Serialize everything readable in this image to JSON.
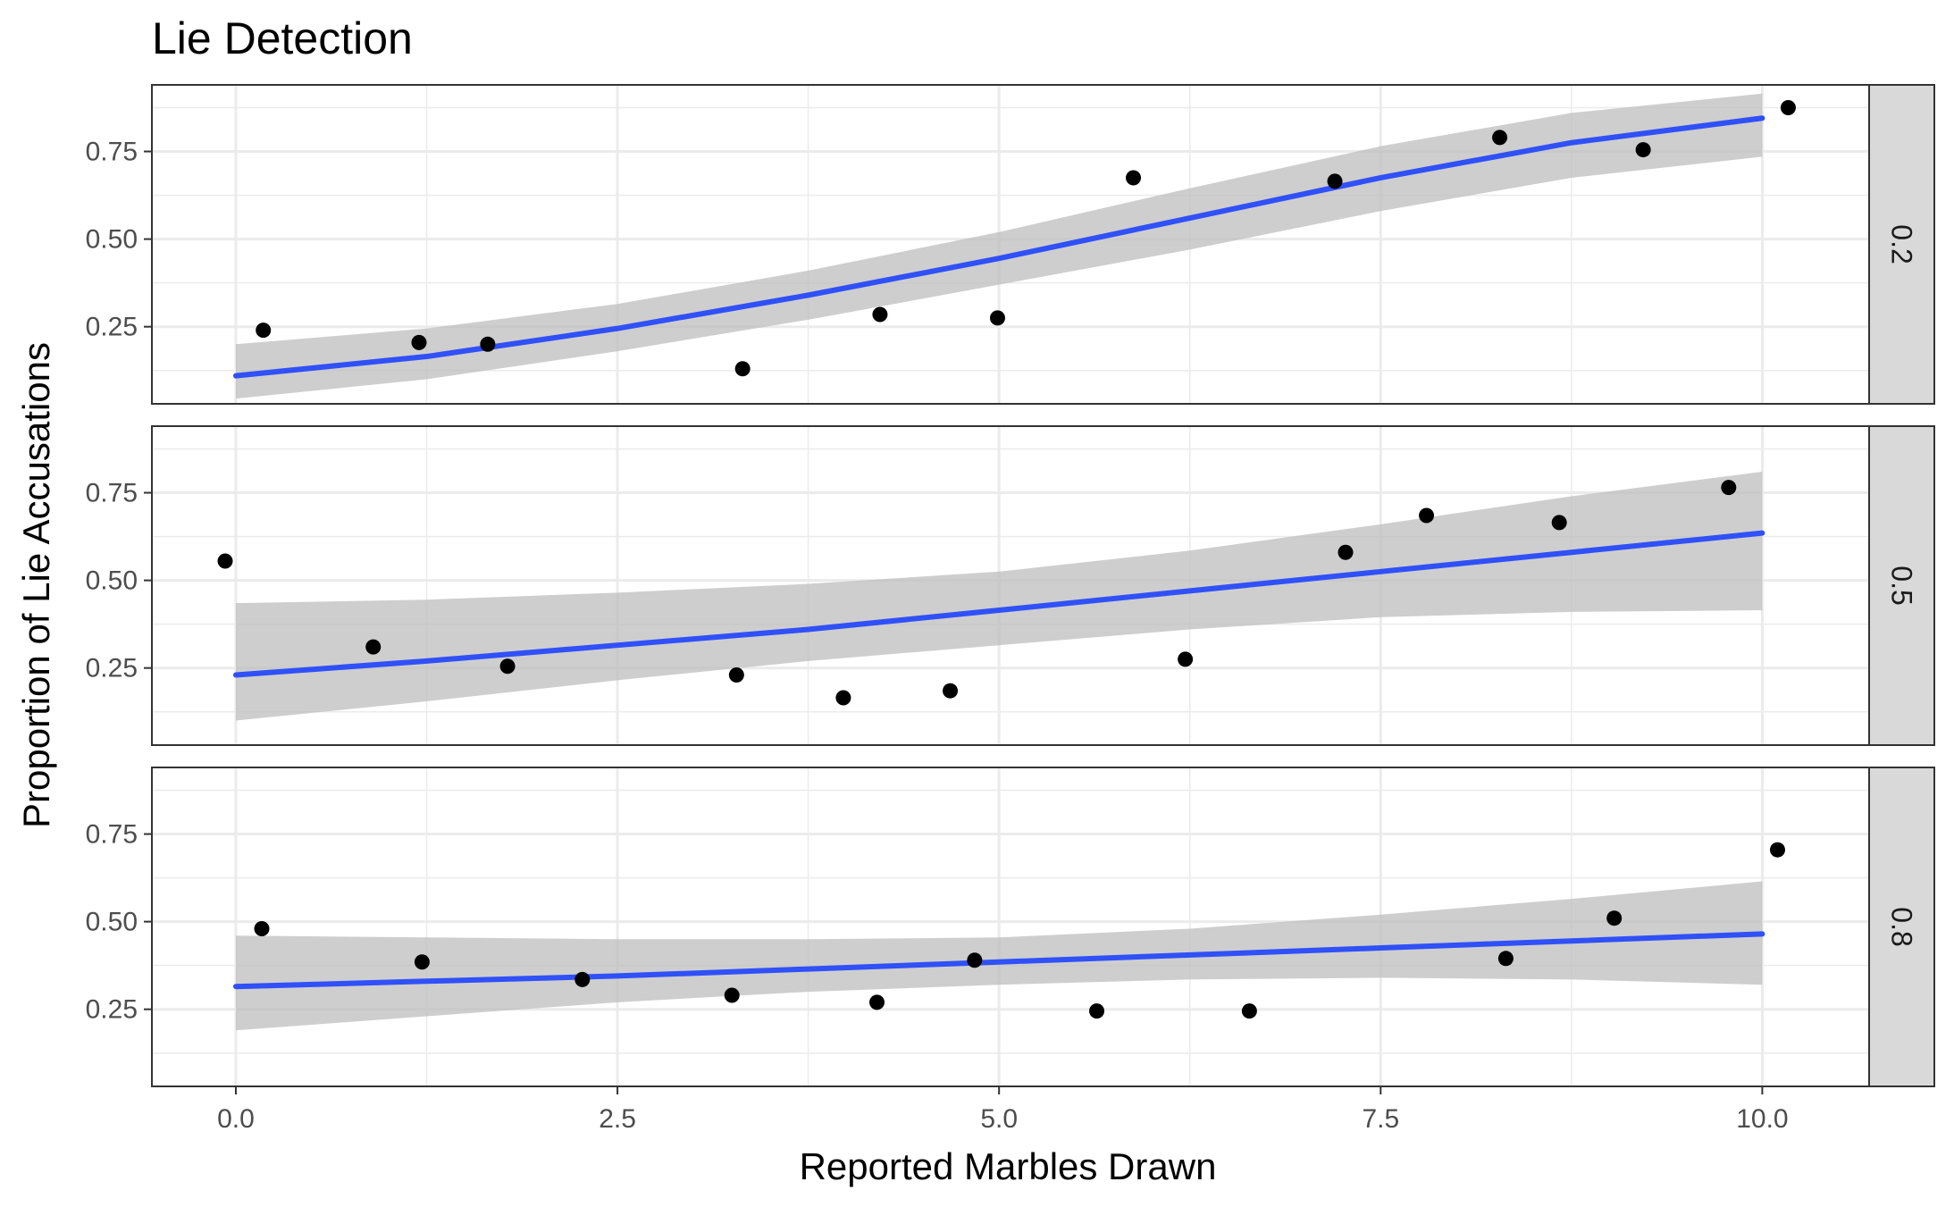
{
  "chart_data": {
    "type": "scatter",
    "title": "Lie Detection",
    "xlabel": "Reported Marbles Drawn",
    "ylabel": "Proportion of Lie Accusations",
    "xlim": [
      -0.55,
      10.7
    ],
    "ylim": [
      0.03,
      0.94
    ],
    "x_ticks": [
      "0.0",
      "2.5",
      "5.0",
      "7.5",
      "10.0"
    ],
    "x_tick_values": [
      0,
      2.5,
      5,
      7.5,
      10
    ],
    "y_ticks": [
      "0.25",
      "0.50",
      "0.75"
    ],
    "y_tick_values": [
      0.25,
      0.5,
      0.75
    ],
    "grid": true,
    "facet_strip_position": "right",
    "colors": {
      "points": "#000000",
      "fit_line": "#3050f8",
      "confidence_band": "#bebebe",
      "strip_fill": "#d9d9d9",
      "grid": "#ebebeb"
    },
    "panels": [
      {
        "strip_label": "0.2",
        "points": [
          {
            "x": 0.18,
            "y": 0.24
          },
          {
            "x": 1.2,
            "y": 0.205
          },
          {
            "x": 1.65,
            "y": 0.2
          },
          {
            "x": 3.32,
            "y": 0.13
          },
          {
            "x": 4.22,
            "y": 0.285
          },
          {
            "x": 4.99,
            "y": 0.275
          },
          {
            "x": 5.88,
            "y": 0.675
          },
          {
            "x": 7.2,
            "y": 0.665
          },
          {
            "x": 8.28,
            "y": 0.79
          },
          {
            "x": 9.22,
            "y": 0.755
          },
          {
            "x": 10.17,
            "y": 0.875
          }
        ],
        "fit": {
          "x": [
            0,
            1.25,
            2.5,
            3.75,
            5,
            6.25,
            7.5,
            8.75,
            10
          ],
          "y": [
            0.11,
            0.165,
            0.245,
            0.34,
            0.445,
            0.56,
            0.675,
            0.775,
            0.845
          ],
          "lower": [
            0.045,
            0.1,
            0.18,
            0.27,
            0.37,
            0.47,
            0.58,
            0.675,
            0.735
          ],
          "upper": [
            0.2,
            0.245,
            0.315,
            0.41,
            0.52,
            0.645,
            0.765,
            0.86,
            0.915
          ]
        }
      },
      {
        "strip_label": "0.5",
        "points": [
          {
            "x": -0.07,
            "y": 0.555
          },
          {
            "x": 0.9,
            "y": 0.31
          },
          {
            "x": 1.78,
            "y": 0.255
          },
          {
            "x": 3.28,
            "y": 0.23
          },
          {
            "x": 3.98,
            "y": 0.165
          },
          {
            "x": 4.68,
            "y": 0.185
          },
          {
            "x": 6.22,
            "y": 0.275
          },
          {
            "x": 7.27,
            "y": 0.58
          },
          {
            "x": 7.8,
            "y": 0.685
          },
          {
            "x": 8.67,
            "y": 0.665
          },
          {
            "x": 9.78,
            "y": 0.765
          }
        ],
        "fit": {
          "x": [
            0,
            1.25,
            2.5,
            3.75,
            5,
            6.25,
            7.5,
            8.75,
            10
          ],
          "y": [
            0.23,
            0.27,
            0.315,
            0.36,
            0.415,
            0.47,
            0.525,
            0.58,
            0.635
          ],
          "lower": [
            0.1,
            0.155,
            0.215,
            0.27,
            0.315,
            0.36,
            0.395,
            0.41,
            0.415
          ],
          "upper": [
            0.435,
            0.445,
            0.465,
            0.49,
            0.525,
            0.585,
            0.66,
            0.74,
            0.81
          ]
        }
      },
      {
        "strip_label": "0.8",
        "points": [
          {
            "x": 0.17,
            "y": 0.48
          },
          {
            "x": 1.22,
            "y": 0.385
          },
          {
            "x": 2.27,
            "y": 0.335
          },
          {
            "x": 3.25,
            "y": 0.29
          },
          {
            "x": 4.2,
            "y": 0.27
          },
          {
            "x": 4.84,
            "y": 0.39
          },
          {
            "x": 5.64,
            "y": 0.245
          },
          {
            "x": 6.64,
            "y": 0.245
          },
          {
            "x": 8.32,
            "y": 0.395
          },
          {
            "x": 9.03,
            "y": 0.51
          },
          {
            "x": 10.1,
            "y": 0.705
          }
        ],
        "fit": {
          "x": [
            0,
            1.25,
            2.5,
            3.75,
            5,
            6.25,
            7.5,
            8.75,
            10
          ],
          "y": [
            0.315,
            0.33,
            0.345,
            0.365,
            0.385,
            0.405,
            0.425,
            0.445,
            0.465
          ],
          "lower": [
            0.19,
            0.23,
            0.27,
            0.3,
            0.32,
            0.335,
            0.34,
            0.335,
            0.32
          ],
          "upper": [
            0.46,
            0.455,
            0.45,
            0.45,
            0.455,
            0.48,
            0.52,
            0.565,
            0.615
          ]
        }
      }
    ]
  }
}
